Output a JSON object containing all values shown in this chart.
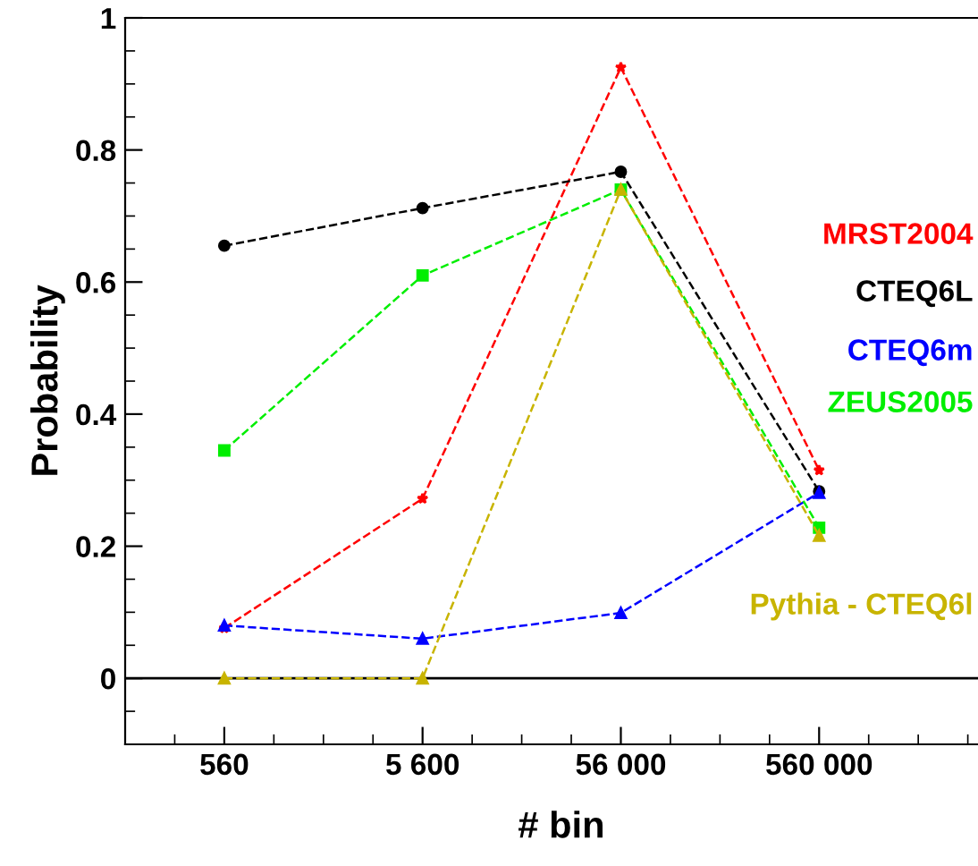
{
  "chart_data": {
    "type": "line",
    "xlabel": "# bin",
    "ylabel": "Probability",
    "categories": [
      "560",
      "5 600",
      "56 000",
      "560 000"
    ],
    "ylim": [
      -0.1,
      1
    ],
    "yticks": [
      0,
      0.2,
      0.4,
      0.6,
      0.8,
      1
    ],
    "grid": false,
    "line_style": "dashed",
    "ref_lines": [
      {
        "axis": "y",
        "value": 0,
        "color": "#000000",
        "line_style": "solid"
      }
    ],
    "series": [
      {
        "name": "MRST2004",
        "color": "#ff0000",
        "marker": "star",
        "values": [
          0.076,
          0.272,
          0.925,
          0.315
        ]
      },
      {
        "name": "CTEQ6L",
        "color": "#000000",
        "marker": "circle",
        "values": [
          0.655,
          0.712,
          0.767,
          0.283
        ]
      },
      {
        "name": "CTEQ6m",
        "color": "#0000ff",
        "marker": "triangle",
        "values": [
          0.08,
          0.06,
          0.099,
          0.281
        ]
      },
      {
        "name": "ZEUS2005",
        "color": "#00ee00",
        "marker": "square",
        "values": [
          0.345,
          0.61,
          0.74,
          0.228
        ]
      },
      {
        "name": "Pythia - CTEQ6l",
        "color": "#c8b400",
        "marker": "triangle",
        "values": [
          0,
          0,
          0.74,
          0.216
        ]
      }
    ]
  }
}
